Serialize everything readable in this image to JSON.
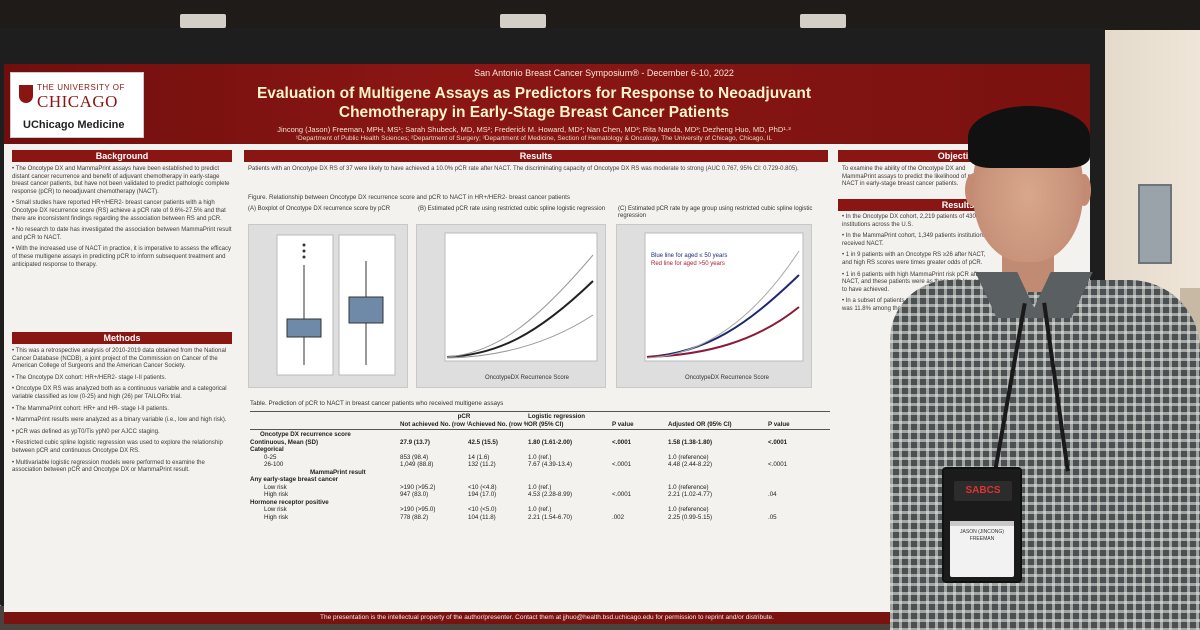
{
  "poster": {
    "conference": "San Antonio Breast Cancer Symposium® - December 6-10, 2022",
    "title": "Evaluation of Multigene Assays as Predictors for Response to Neoadjuvant Chemotherapy in Early-Stage Breast Cancer Patients",
    "authors": "Jincong (Jason) Freeman, MPH, MS¹; Sarah Shubeck, MD, MS²; Frederick M. Howard, MD³; Nan Chen, MD³; Rita Nanda, MD³; Dezheng Huo, MD, PhD¹·³",
    "affiliations": "¹Department of Public Health Sciences; ²Department of Surgery; ³Department of Medicine, Section of Hematology & Oncology, The University of Chicago, Chicago, IL",
    "logo": {
      "line1": "THE UNIVERSITY OF",
      "line2": "CHICAGO",
      "line3": "UChicago Medicine"
    },
    "headings": {
      "background": "Background",
      "methods": "Methods",
      "results": "Results",
      "objective": "Objective",
      "results_right": "Results"
    },
    "background_text": [
      "The Oncotype DX and MammaPrint assays have been established to predict distant cancer recurrence and benefit of adjuvant chemotherapy in early-stage breast cancer patients, but have not been validated to predict pathologic complete response (pCR) to neoadjuvant chemotherapy (NACT).",
      "Small studies have reported HR+/HER2- breast cancer patients with a high Oncotype DX recurrence score (RS) achieve a pCR rate of 9.6%-27.5% and that there are inconsistent findings regarding the association between RS and pCR.",
      "No research to date has investigated the association between MammaPrint result and pCR to NACT.",
      "With the increased use of NACT in practice, it is imperative to assess the efficacy of these multigene assays in predicting pCR to inform subsequent treatment and anticipated response to therapy."
    ],
    "methods_text": [
      "This was a retrospective analysis of 2010-2019 data obtained from the National Cancer Database (NCDB), a joint project of the Commission on Cancer of the American College of Surgeons and the American Cancer Society.",
      "The Oncotype DX cohort: HR+/HER2- stage I-II patients.",
      "Oncotype DX RS was analyzed both as a continuous variable and a categorical variable classified as low (0-25) and high (26) per TAILORx trial.",
      "The MammaPrint cohort: HR+ and HR- stage I-II patients.",
      "MammaPrint results were analyzed as a binary variable (i.e., low and high risk).",
      "pCR was defined as ypT0/Tis ypN0 per AJCC staging.",
      "Restricted cubic spline logistic regression was used to explore the relationship between pCR and continuous Oncotype DX RS.",
      "Multivariable logistic regression models were performed to examine the association between pCR and Oncotype DX or MammaPrint result."
    ],
    "results_bullet": "Patients with an Oncotype DX RS of 37 were likely to have achieved a 10.0% pCR rate after NACT. The discriminating capacity of Oncotype DX RS was moderate to strong (AUC 0.767, 95% CI: 0.729-0.805).",
    "figure_caption": "Figure. Relationship between Oncotype DX recurrence score and pCR to NACT in HR+/HER2- breast cancer patients",
    "figures": {
      "a_label": "(A) Boxplot of Oncotype DX recurrence score by pCR",
      "b_label": "(B) Estimated pCR rate using restricted cubic spline logistic regression",
      "c_label": "(C) Estimated pCR rate by age group using restricted cubic spline logistic regression",
      "b_xlabel": "OncotypeDX Recurrence Score",
      "c_xlabel": "OncotypeDX Recurrence Score",
      "c_legend_blue": "Blue line for aged ≤ 50 years",
      "c_legend_red": "Red line for aged >50 years"
    },
    "table": {
      "caption": "Table. Prediction of pCR to NACT in breast cancer patients who received multigene assays",
      "group_pcr": "pCR",
      "group_lr": "Logistic regression",
      "headers": [
        "",
        "Not achieved No. (row %)",
        "Achieved No. (row %)",
        "OR (95% CI)",
        "P value",
        "Adjusted OR (95% CI)",
        "P value"
      ],
      "section1": "Oncotype DX recurrence score",
      "rows1": [
        [
          "Continuous, Mean (SD)",
          "27.9 (13.7)",
          "42.5 (15.5)",
          "1.80 (1.61-2.00)",
          "<.0001",
          "1.58 (1.38-1.80)",
          "<.0001"
        ],
        [
          "Categorical",
          "",
          "",
          "",
          "",
          "",
          ""
        ],
        [
          "0-25",
          "853 (98.4)",
          "14 (1.6)",
          "1.0 (ref.)",
          "",
          "1.0 (reference)",
          ""
        ],
        [
          "26-100",
          "1,049 (88.8)",
          "132 (11.2)",
          "7.67 (4.39-13.4)",
          "<.0001",
          "4.48 (2.44-8.22)",
          "<.0001"
        ]
      ],
      "section2": "MammaPrint result",
      "rows2": [
        [
          "Any early-stage breast cancer",
          "",
          "",
          "",
          "",
          "",
          ""
        ],
        [
          "Low risk",
          ">190 (>95.2)",
          "<10 (<4.8)",
          "1.0 (ref.)",
          "",
          "1.0 (reference)",
          ""
        ],
        [
          "High risk",
          "947 (83.0)",
          "194 (17.0)",
          "4.53 (2.28-8.99)",
          "<.0001",
          "2.21 (1.02-4.77)",
          ".04"
        ],
        [
          "Hormone receptor positive",
          "",
          "",
          "",
          "",
          "",
          ""
        ],
        [
          "Low risk",
          ">190 (>95.0)",
          "<10 (<5.0)",
          "1.0 (ref.)",
          "",
          "1.0 (reference)",
          ""
        ],
        [
          "High risk",
          "778 (88.2)",
          "104 (11.8)",
          "2.21 (1.54-6.70)",
          ".002",
          "2.25 (0.99-5.15)",
          ".05"
        ]
      ]
    },
    "objective_text": "To examine the ability of the Oncotype DX and MammaPrint assays to predict the likelihood of pCR to NACT in early-stage breast cancer patients.",
    "results_right_text": [
      "In the Oncotype DX cohort, 2,219 patients of 430 institutions across the U.S.",
      "In the MammaPrint cohort, 1,349 patients institutions, received NACT.",
      "1 in 9 patients with an Oncotype RS ≥26 after NACT, and high RS scores were times greater odds of pCR.",
      "1 in 6 patients with high MammaPrint risk pCR after NACT, and these patients were as those with low score to have achieved.",
      "In a subset of patients with HR+ disease, pCR rate was 11.8% among those with high MammaPrint result."
    ],
    "footer": "The presentation is the intellectual property of the author/presenter. Contact them at jjhuo@health.bsd.uchicago.edu for permission to reprint and/or distribute."
  },
  "badge": {
    "logo": "SABCS",
    "text": "JASON (JINCONG) FREEMAN"
  },
  "colors": {
    "banner": "#8a1614",
    "title_text": "#fff4c8",
    "poster_bg": "#f4f2ee"
  }
}
